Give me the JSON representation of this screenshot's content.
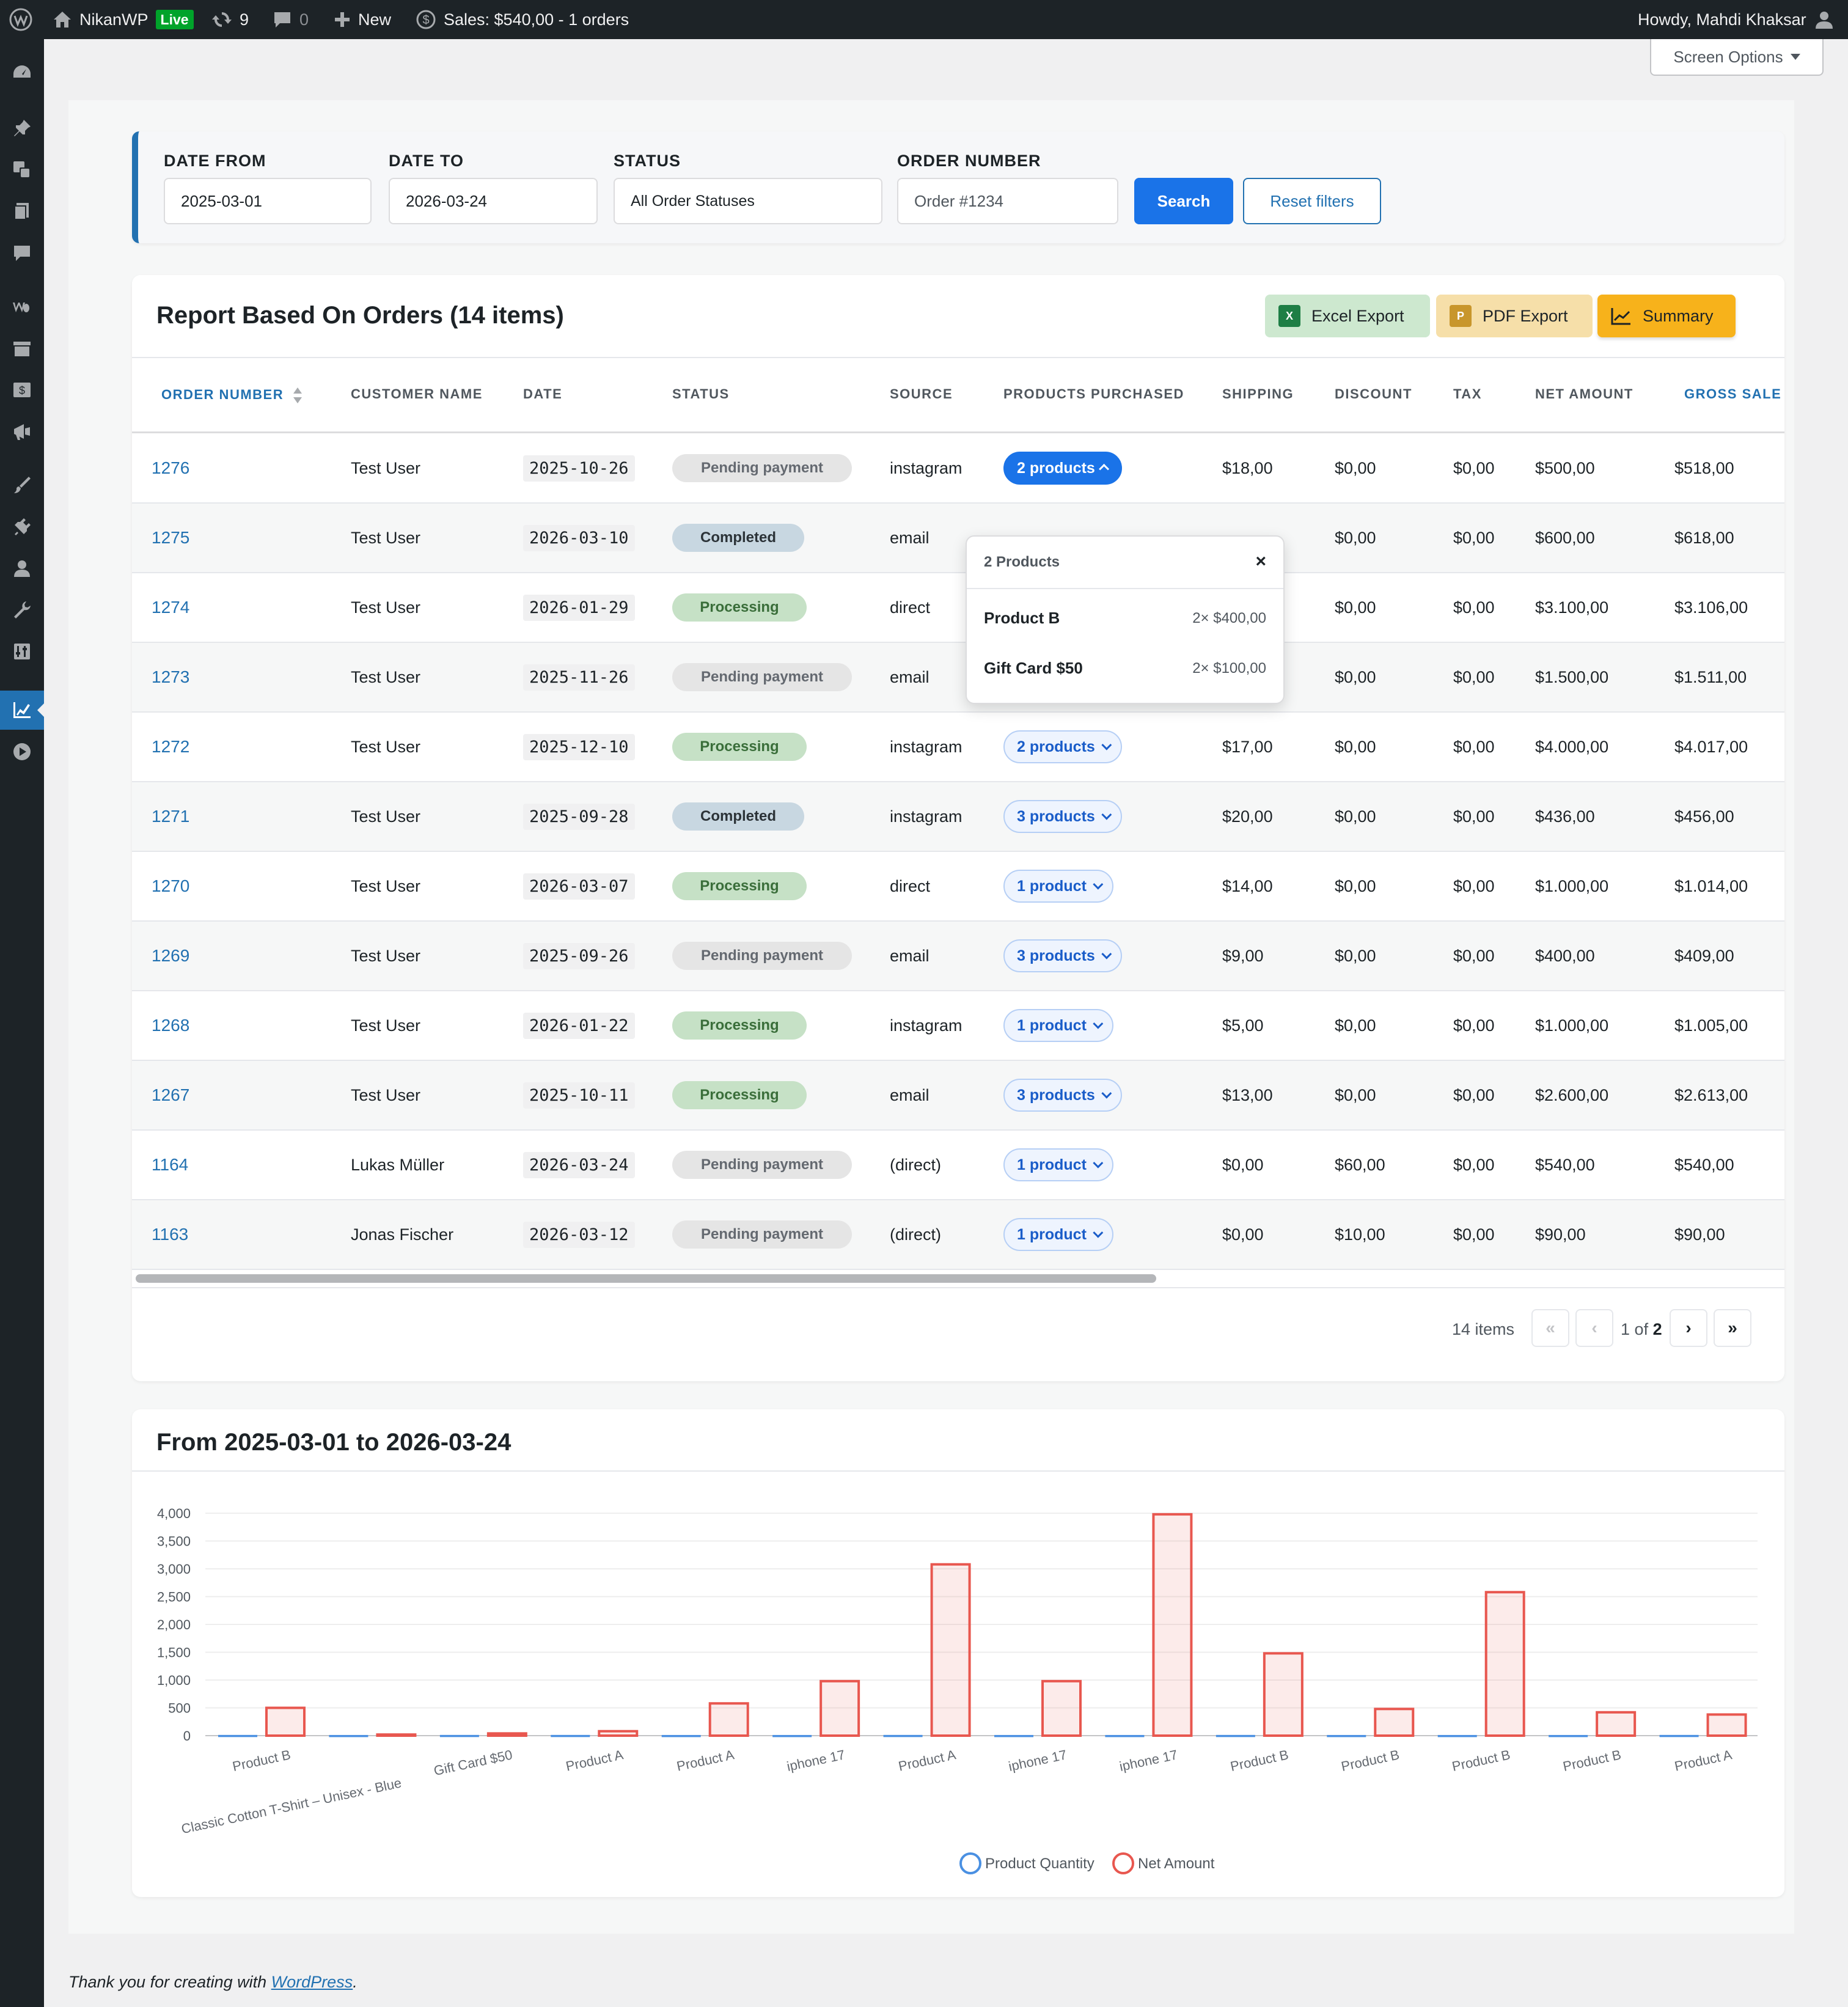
{
  "admin_bar": {
    "site_name": "NikanWP",
    "live_badge": "Live",
    "updates_count": "9",
    "comments_count": "0",
    "new_label": "New",
    "sales_label": "Sales: $540,00 - 1 orders",
    "howdy": "Howdy, Mahdi Khaksar"
  },
  "screen_options": "Screen Options",
  "filters": {
    "date_from_label": "DATE FROM",
    "date_from_value": "2025-03-01",
    "date_to_label": "DATE TO",
    "date_to_value": "2026-03-24",
    "status_label": "STATUS",
    "status_value": "All Order Statuses",
    "order_number_label": "ORDER NUMBER",
    "order_number_placeholder": "Order #1234",
    "search_label": "Search",
    "reset_label": "Reset filters"
  },
  "report": {
    "title": "Report Based On Orders (14 items)",
    "excel_label": "Excel Export",
    "pdf_label": "PDF Export",
    "summary_label": "Summary",
    "columns": [
      "ORDER NUMBER",
      "CUSTOMER NAME",
      "DATE",
      "STATUS",
      "SOURCE",
      "PRODUCTS PURCHASED",
      "SHIPPING",
      "DISCOUNT",
      "TAX",
      "NET AMOUNT",
      "GROSS SALE"
    ],
    "rows": [
      {
        "order": "1276",
        "customer": "Test User",
        "date": "2025-10-26",
        "status": "Pending payment",
        "status_type": "pending",
        "source": "instagram",
        "products": "2 products",
        "shipping": "$18,00",
        "discount": "$0,00",
        "tax": "$0,00",
        "net": "$500,00",
        "gross": "$518,00"
      },
      {
        "order": "1275",
        "customer": "Test User",
        "date": "2026-03-10",
        "status": "Completed",
        "status_type": "completed",
        "source": "email",
        "products": "",
        "shipping": "",
        "discount": "$0,00",
        "tax": "$0,00",
        "net": "$600,00",
        "gross": "$618,00"
      },
      {
        "order": "1274",
        "customer": "Test User",
        "date": "2026-01-29",
        "status": "Processing",
        "status_type": "processing",
        "source": "direct",
        "products": "",
        "shipping": "",
        "discount": "$0,00",
        "tax": "$0,00",
        "net": "$3.100,00",
        "gross": "$3.106,00"
      },
      {
        "order": "1273",
        "customer": "Test User",
        "date": "2025-11-26",
        "status": "Pending payment",
        "status_type": "pending",
        "source": "email",
        "products": "",
        "shipping": "",
        "discount": "$0,00",
        "tax": "$0,00",
        "net": "$1.500,00",
        "gross": "$1.511,00"
      },
      {
        "order": "1272",
        "customer": "Test User",
        "date": "2025-12-10",
        "status": "Processing",
        "status_type": "processing",
        "source": "instagram",
        "products": "2 products",
        "shipping": "$17,00",
        "discount": "$0,00",
        "tax": "$0,00",
        "net": "$4.000,00",
        "gross": "$4.017,00"
      },
      {
        "order": "1271",
        "customer": "Test User",
        "date": "2025-09-28",
        "status": "Completed",
        "status_type": "completed",
        "source": "instagram",
        "products": "3 products",
        "shipping": "$20,00",
        "discount": "$0,00",
        "tax": "$0,00",
        "net": "$436,00",
        "gross": "$456,00"
      },
      {
        "order": "1270",
        "customer": "Test User",
        "date": "2026-03-07",
        "status": "Processing",
        "status_type": "processing",
        "source": "direct",
        "products": "1 product",
        "shipping": "$14,00",
        "discount": "$0,00",
        "tax": "$0,00",
        "net": "$1.000,00",
        "gross": "$1.014,00"
      },
      {
        "order": "1269",
        "customer": "Test User",
        "date": "2025-09-26",
        "status": "Pending payment",
        "status_type": "pending",
        "source": "email",
        "products": "3 products",
        "shipping": "$9,00",
        "discount": "$0,00",
        "tax": "$0,00",
        "net": "$400,00",
        "gross": "$409,00"
      },
      {
        "order": "1268",
        "customer": "Test User",
        "date": "2026-01-22",
        "status": "Processing",
        "status_type": "processing",
        "source": "instagram",
        "products": "1 product",
        "shipping": "$5,00",
        "discount": "$0,00",
        "tax": "$0,00",
        "net": "$1.000,00",
        "gross": "$1.005,00"
      },
      {
        "order": "1267",
        "customer": "Test User",
        "date": "2025-10-11",
        "status": "Processing",
        "status_type": "processing",
        "source": "email",
        "products": "3 products",
        "shipping": "$13,00",
        "discount": "$0,00",
        "tax": "$0,00",
        "net": "$2.600,00",
        "gross": "$2.613,00"
      },
      {
        "order": "1164",
        "customer": "Lukas Müller",
        "date": "2026-03-24",
        "status": "Pending payment",
        "status_type": "pending",
        "source": "(direct)",
        "products": "1 product",
        "shipping": "$0,00",
        "discount": "$60,00",
        "tax": "$0,00",
        "net": "$540,00",
        "gross": "$540,00"
      },
      {
        "order": "1163",
        "customer": "Jonas Fischer",
        "date": "2026-03-12",
        "status": "Pending payment",
        "status_type": "pending",
        "source": "(direct)",
        "products": "1 product",
        "shipping": "$0,00",
        "discount": "$10,00",
        "tax": "$0,00",
        "net": "$90,00",
        "gross": "$90,00"
      }
    ]
  },
  "popover": {
    "title": "2 Products",
    "close": "×",
    "items": [
      {
        "name": "Product B",
        "qty": "2× $400,00"
      },
      {
        "name": "Gift Card $50",
        "qty": "2× $100,00"
      }
    ]
  },
  "pagination": {
    "items_label": "14 items",
    "first": "«",
    "prev": "‹",
    "current": "1",
    "of_label": "of",
    "total": "2",
    "next": "›",
    "last": "»"
  },
  "chart_title": "From 2025-03-01 to 2026-03-24",
  "chart_data": {
    "type": "bar",
    "categories": [
      "Product B",
      "Classic Cotton T-Shirt – Unisex - Blue",
      "Gift Card $50",
      "Product A",
      "Product A",
      "iphone 17",
      "Product A",
      "iphone 17",
      "iphone 17",
      "Product B",
      "Product B",
      "Product B",
      "Product B",
      "Product A"
    ],
    "series": [
      {
        "name": "Product Quantity",
        "values": [
          2,
          1,
          2,
          2,
          1,
          1,
          2,
          1,
          1,
          2,
          1,
          1,
          1,
          2
        ],
        "color": "#4a90e2"
      },
      {
        "name": "Net Amount",
        "values": [
          500,
          20,
          40,
          80,
          580,
          980,
          3080,
          980,
          3980,
          1480,
          480,
          2580,
          420,
          380
        ],
        "color": "#e8574f"
      }
    ],
    "y_ticks": [
      "0",
      "500",
      "1,000",
      "1,500",
      "2,000",
      "2,500",
      "3,000",
      "3,500",
      "4,000"
    ],
    "ylim": [
      0,
      4000
    ],
    "legend_position": "bottom",
    "grid": true
  },
  "footer": {
    "text": "Thank you for creating with ",
    "link": "WordPress",
    "end": "."
  }
}
